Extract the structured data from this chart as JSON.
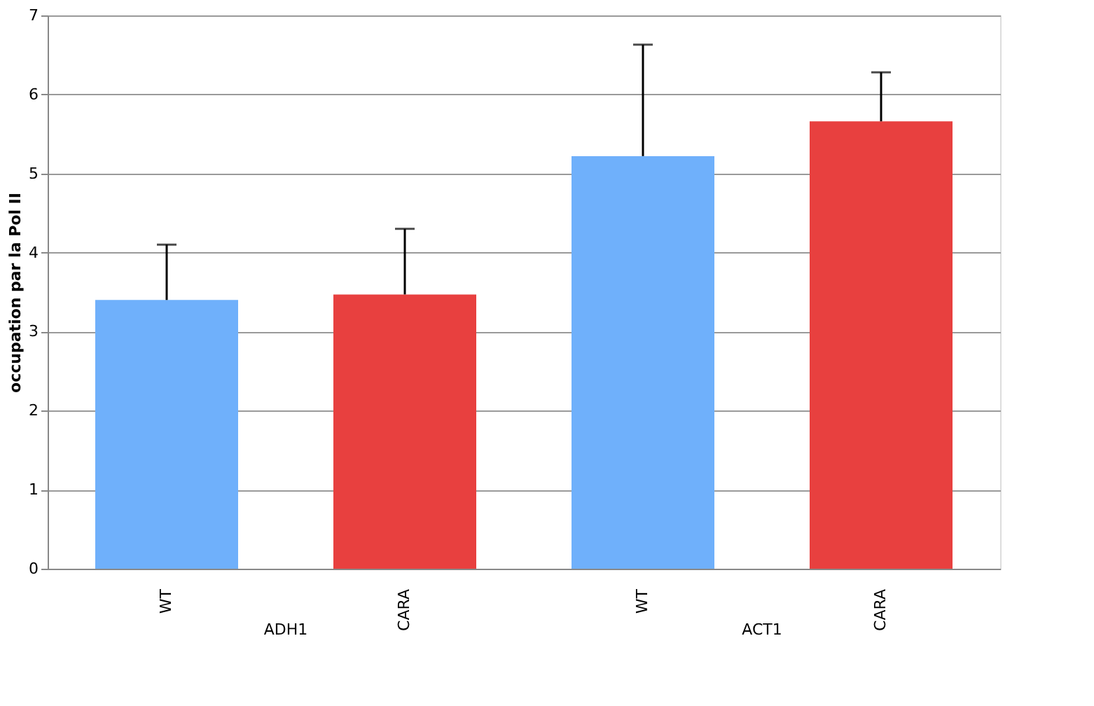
{
  "chart_data": {
    "type": "bar",
    "ylabel": "occupation par la Pol II",
    "categories": [
      "WT",
      "CARA",
      "WT",
      "CARA"
    ],
    "values": [
      3.4,
      3.47,
      5.22,
      5.66
    ],
    "colors": [
      "#6fb0fb",
      "#e8403f",
      "#6fb0fb",
      "#e8403f"
    ],
    "errors": [
      [
        3.4,
        4.1
      ],
      [
        3.47,
        4.3
      ],
      [
        5.22,
        6.63
      ],
      [
        5.66,
        6.28
      ]
    ],
    "annotations": [
      "ADH1",
      "ACT1"
    ],
    "ylim": [
      0,
      7
    ],
    "yticks": [
      0,
      1,
      2,
      3,
      4,
      5,
      6,
      7
    ],
    "grid": "y",
    "legend": false
  }
}
